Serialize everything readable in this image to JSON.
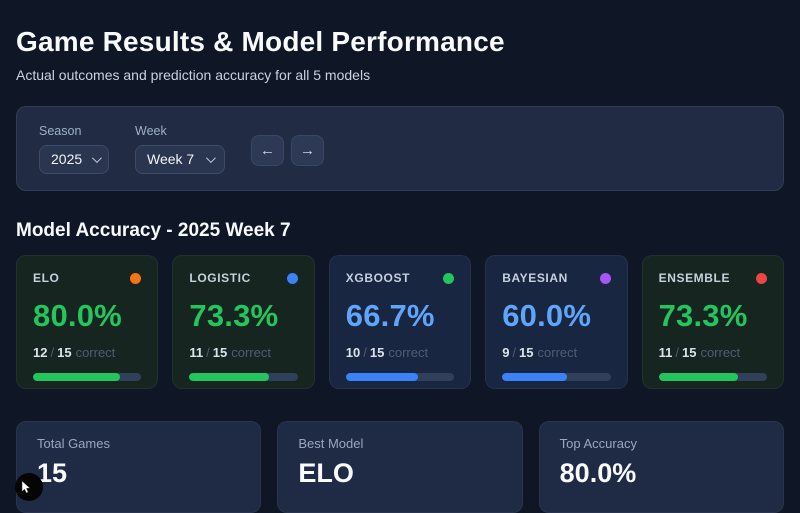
{
  "header": {
    "title": "Game Results & Model Performance",
    "subtitle": "Actual outcomes and prediction accuracy for all 5 models"
  },
  "filters": {
    "season_label": "Season",
    "season_value": "2025",
    "week_label": "Week",
    "week_value": "Week 7",
    "prev_button": "←",
    "next_button": "→"
  },
  "section": {
    "title": "Model Accuracy - 2025 Week 7"
  },
  "record_text": {
    "separator": "/",
    "suffix": "correct"
  },
  "model_cards": [
    {
      "name": "ELO",
      "dot_color": "#f97316",
      "accuracy": "80.0%",
      "correct": "12",
      "total": "15",
      "pct": 80,
      "theme": "green"
    },
    {
      "name": "LOGISTIC",
      "dot_color": "#3b82f6",
      "accuracy": "73.3%",
      "correct": "11",
      "total": "15",
      "pct": 73.3,
      "theme": "green"
    },
    {
      "name": "XGBOOST",
      "dot_color": "#22c55e",
      "accuracy": "66.7%",
      "correct": "10",
      "total": "15",
      "pct": 66.7,
      "theme": "blue"
    },
    {
      "name": "BAYESIAN",
      "dot_color": "#a855f7",
      "accuracy": "60.0%",
      "correct": "9",
      "total": "15",
      "pct": 60,
      "theme": "blue"
    },
    {
      "name": "ENSEMBLE",
      "dot_color": "#ef4444",
      "accuracy": "73.3%",
      "correct": "11",
      "total": "15",
      "pct": 73.3,
      "theme": "green"
    }
  ],
  "summary_cards": [
    {
      "label": "Total Games",
      "value": "15"
    },
    {
      "label": "Best Model",
      "value": "ELO"
    },
    {
      "label": "Top Accuracy",
      "value": "80.0%"
    }
  ],
  "colors": {
    "page_bg": "#0f1727",
    "panel_bg": "#212c44",
    "green_accent": "#22c55e",
    "blue_accent": "#60a5fa",
    "blue_bar": "#3b82f6"
  }
}
